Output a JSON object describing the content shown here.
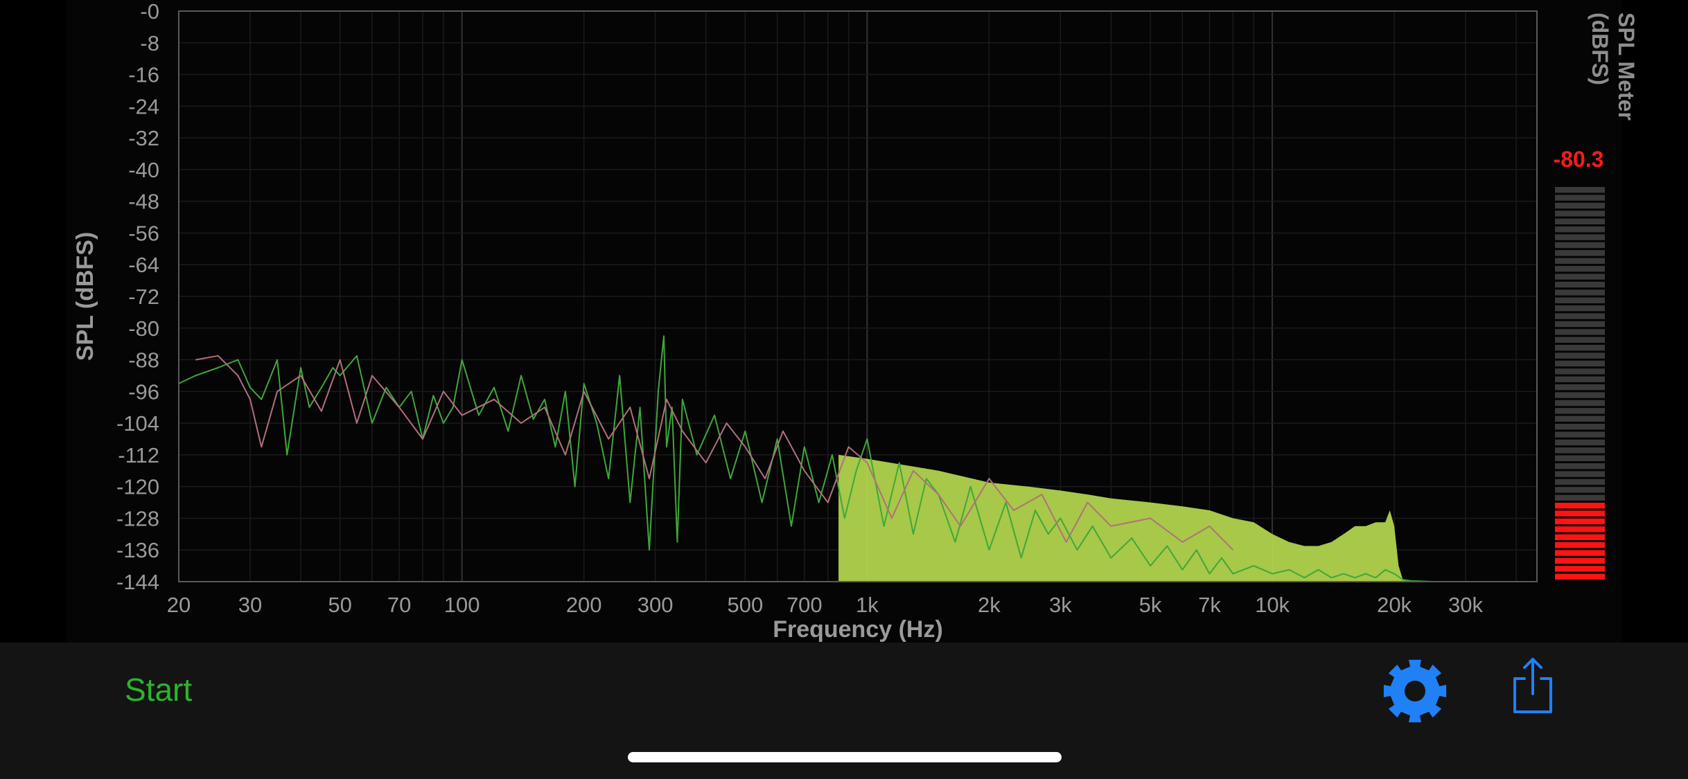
{
  "app": {
    "background_color": "#000000",
    "toolbar_color": "#141414"
  },
  "chart_data": {
    "type": "line",
    "xlabel": "Frequency (Hz)",
    "ylabel": "SPL (dBFS)",
    "x_scale": "log",
    "xlim": [
      20,
      45000
    ],
    "ylim": [
      -144,
      0
    ],
    "x_ticks": [
      {
        "value": 20,
        "label": "20"
      },
      {
        "value": 30,
        "label": "30"
      },
      {
        "value": 50,
        "label": "50"
      },
      {
        "value": 70,
        "label": "70"
      },
      {
        "value": 100,
        "label": "100"
      },
      {
        "value": 200,
        "label": "200"
      },
      {
        "value": 300,
        "label": "300"
      },
      {
        "value": 500,
        "label": "500"
      },
      {
        "value": 700,
        "label": "700"
      },
      {
        "value": 1000,
        "label": "1k"
      },
      {
        "value": 2000,
        "label": "2k"
      },
      {
        "value": 3000,
        "label": "3k"
      },
      {
        "value": 5000,
        "label": "5k"
      },
      {
        "value": 7000,
        "label": "7k"
      },
      {
        "value": 10000,
        "label": "10k"
      },
      {
        "value": 20000,
        "label": "20k"
      },
      {
        "value": 30000,
        "label": "30k"
      }
    ],
    "y_ticks": [
      {
        "value": 0,
        "label": "-0"
      },
      {
        "value": -8,
        "label": "-8"
      },
      {
        "value": -16,
        "label": "-16"
      },
      {
        "value": -24,
        "label": "-24"
      },
      {
        "value": -32,
        "label": "-32"
      },
      {
        "value": -40,
        "label": "-40"
      },
      {
        "value": -48,
        "label": "-48"
      },
      {
        "value": -56,
        "label": "-56"
      },
      {
        "value": -64,
        "label": "-64"
      },
      {
        "value": -72,
        "label": "-72"
      },
      {
        "value": -80,
        "label": "-80"
      },
      {
        "value": -88,
        "label": "-88"
      },
      {
        "value": -96,
        "label": "-96"
      },
      {
        "value": -104,
        "label": "-104"
      },
      {
        "value": -112,
        "label": "-112"
      },
      {
        "value": -120,
        "label": "-120"
      },
      {
        "value": -128,
        "label": "-128"
      },
      {
        "value": -136,
        "label": "-136"
      },
      {
        "value": -144,
        "label": "-144"
      }
    ],
    "grid": true,
    "colors": {
      "fill": "#b5d94e",
      "trace_green": "#3fa73a",
      "trace_pink": "#b2707c",
      "grid_minor": "#1b1b1b",
      "grid_major": "#333333",
      "frame": "#5a5a5a",
      "tick_label": "#9a9a9a"
    },
    "series": [
      {
        "style": "fill",
        "x": [
          850,
          1000,
          1500,
          2000,
          2500,
          3000,
          3500,
          4000,
          5000,
          6000,
          7000,
          8000,
          9000,
          10000,
          11000,
          12000,
          13000,
          14000,
          15000,
          16000,
          17000,
          18000,
          19000,
          19500,
          20000,
          20500,
          21000,
          22000,
          25000,
          30000,
          45000
        ],
        "y": [
          -112,
          -113,
          -116,
          -119,
          -120,
          -121,
          -122,
          -123,
          -124,
          -125,
          -126,
          -128,
          -129,
          -132,
          -134,
          -135,
          -135,
          -134,
          -132,
          -130,
          -130,
          -129,
          -129,
          -126,
          -130,
          -140,
          -143.5,
          -143.8,
          -144,
          -144,
          -144
        ]
      },
      {
        "name_hidden": true,
        "style": "line",
        "color_key": "trace_green",
        "x": [
          20,
          22,
          25,
          28,
          30,
          32,
          35,
          37,
          40,
          42,
          45,
          48,
          50,
          55,
          60,
          65,
          70,
          75,
          80,
          85,
          90,
          95,
          100,
          110,
          120,
          130,
          140,
          150,
          160,
          170,
          180,
          190,
          200,
          215,
          230,
          245,
          260,
          275,
          290,
          305,
          315,
          320,
          330,
          340,
          350,
          380,
          420,
          460,
          500,
          550,
          600,
          650,
          700,
          760,
          820,
          880,
          940,
          1000,
          1100,
          1200,
          1300,
          1400,
          1500,
          1650,
          1800,
          2000,
          2200,
          2400,
          2600,
          2800,
          3000,
          3300,
          3600,
          4000,
          4500,
          5000,
          5500,
          6000,
          6500,
          7000,
          7500,
          8000,
          9000,
          10000,
          11000,
          12000,
          13000,
          14000,
          15000,
          16000,
          17000,
          18000,
          19000,
          20000,
          21000,
          22000,
          25000,
          30000,
          45000
        ],
        "y": [
          -94,
          -92,
          -90,
          -88,
          -95,
          -98,
          -88,
          -112,
          -90,
          -100,
          -95,
          -90,
          -92,
          -87,
          -104,
          -95,
          -100,
          -96,
          -108,
          -97,
          -104,
          -100,
          -88,
          -102,
          -95,
          -106,
          -92,
          -103,
          -98,
          -110,
          -96,
          -120,
          -94,
          -104,
          -118,
          -92,
          -124,
          -100,
          -136,
          -96,
          -82,
          -110,
          -100,
          -134,
          -98,
          -112,
          -102,
          -118,
          -106,
          -124,
          -108,
          -130,
          -110,
          -124,
          -112,
          -128,
          -116,
          -108,
          -130,
          -114,
          -132,
          -118,
          -122,
          -134,
          -120,
          -136,
          -124,
          -138,
          -126,
          -132,
          -128,
          -136,
          -130,
          -138,
          -133,
          -140,
          -135,
          -141,
          -136,
          -142,
          -138,
          -142,
          -140,
          -142,
          -141,
          -143,
          -141,
          -143,
          -142,
          -143,
          -142,
          -143,
          -141,
          -142,
          -143.5,
          -143.8,
          -144,
          -144,
          -144
        ]
      },
      {
        "name_hidden": true,
        "style": "line",
        "color_key": "trace_pink",
        "x": [
          22,
          25,
          28,
          30,
          32,
          35,
          40,
          45,
          50,
          55,
          60,
          70,
          80,
          90,
          100,
          120,
          140,
          160,
          180,
          200,
          230,
          260,
          290,
          320,
          350,
          400,
          450,
          500,
          560,
          620,
          700,
          800,
          900,
          1000,
          1150,
          1300,
          1500,
          1700,
          2000,
          2300,
          2700,
          3100,
          3500,
          4000,
          5000,
          6000,
          7000,
          8000
        ],
        "y": [
          -88,
          -87,
          -92,
          -98,
          -110,
          -96,
          -92,
          -101,
          -88,
          -104,
          -92,
          -100,
          -108,
          -96,
          -102,
          -98,
          -104,
          -100,
          -112,
          -96,
          -108,
          -100,
          -118,
          -98,
          -106,
          -114,
          -104,
          -110,
          -118,
          -106,
          -116,
          -124,
          -110,
          -114,
          -128,
          -116,
          -122,
          -130,
          -118,
          -126,
          -122,
          -134,
          -124,
          -130,
          -128,
          -134,
          -130,
          -136
        ]
      }
    ]
  },
  "spl_meter": {
    "label": "SPL Meter\n(dBFS)",
    "value": "-80.3",
    "range": [
      -144,
      0
    ],
    "level": -80.3,
    "active_segments": 10,
    "segment_count": 50,
    "color_active": "#ff1414",
    "color_inactive": "#3a3a3a"
  },
  "toolbar": {
    "start_label": "Start",
    "start_color": "#2bb52b",
    "settings_icon": "gear-icon",
    "share_icon": "share-icon",
    "icon_color": "#2080f5"
  }
}
